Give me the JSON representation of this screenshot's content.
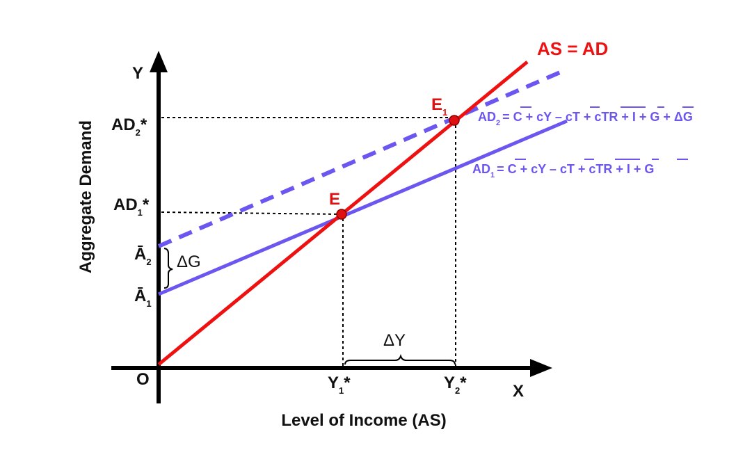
{
  "axes": {
    "y_title": "Aggregate Demand",
    "x_title": "Level of Income (AS)",
    "y_end": "Y",
    "x_end": "X",
    "origin": "O"
  },
  "y_ticks": {
    "ad2": {
      "main": "AD",
      "sub": "2",
      "star": "*"
    },
    "ad1": {
      "main": "AD",
      "sub": "1",
      "star": "*"
    },
    "a2": {
      "main": "Ā",
      "sub": "2"
    },
    "a1": {
      "main": "Ā",
      "sub": "1"
    }
  },
  "x_ticks": {
    "y1": {
      "main": "Y",
      "sub": "1",
      "star": "*"
    },
    "y2": {
      "main": "Y",
      "sub": "2",
      "star": "*"
    }
  },
  "lines": {
    "as_ad": {
      "label": "AS = AD",
      "color": "#ee1111"
    },
    "ad1": {
      "prefix": "AD",
      "sub": "1",
      "eq": "= C + cY – cT + cTR + I + G",
      "color": "#6b57f0"
    },
    "ad2": {
      "prefix": "AD",
      "sub": "2",
      "eq": "= C + cY – cT + cTR + I + G + ΔG",
      "color": "#6b57f0"
    }
  },
  "points": {
    "e": {
      "label": "E",
      "color": "#dd1111"
    },
    "e1": {
      "label": "E",
      "sub": "1",
      "color": "#dd1111"
    }
  },
  "annotations": {
    "delta_g": "ΔG",
    "delta_y": "ΔY"
  }
}
